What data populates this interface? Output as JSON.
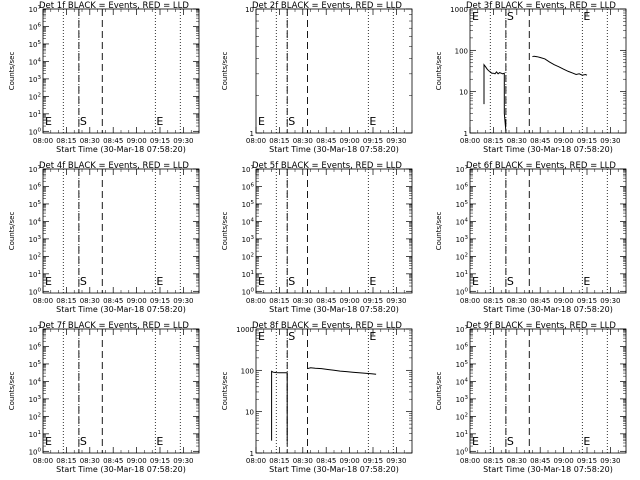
{
  "chart_data": [
    {
      "title": "Det 1f BLACK = Events, RED = LLD",
      "ylabel": "Counts/sec",
      "xlabel": "Start Time (30-Mar-18 07:58:20)",
      "type": "line",
      "yscale": "log",
      "ylim": [
        0.8,
        10000000
      ],
      "yticks": [
        "10^0",
        "10^1",
        "10^2",
        "10^3",
        "10^4",
        "10^5",
        "10^6",
        "10^7"
      ],
      "xticks": [
        "08:00",
        "08:15",
        "08:30",
        "08:45",
        "09:00",
        "09:15",
        "09:30"
      ],
      "dotted_lines": [
        "08:13",
        "08:23",
        "09:12",
        "09:28"
      ],
      "dashed_lines": [
        "08:23",
        "08:38"
      ],
      "markers": {
        "S": "08:23",
        "E": "09:12"
      },
      "series": []
    },
    {
      "title": "Det 2f BLACK = Events, RED = LLD",
      "ylabel": "Counts/sec",
      "xlabel": "Start Time (30-Mar-18 07:58:20)",
      "type": "line",
      "yscale": "log",
      "ylim": [
        1,
        10
      ],
      "yticks": [
        "1",
        "10"
      ],
      "xticks": [
        "08:00",
        "08:15",
        "08:30",
        "08:45",
        "09:00",
        "09:15",
        "09:30"
      ],
      "dotted_lines": [
        "08:13",
        "08:20",
        "09:12",
        "09:28"
      ],
      "dashed_lines": [
        "08:20",
        "08:33"
      ],
      "markers": {
        "S": "08:20",
        "E": "09:12"
      },
      "series": []
    },
    {
      "title": "Det 3f BLACK = Events, RED = LLD",
      "ylabel": "Counts/sec",
      "xlabel": "Start Time (30-Mar-18 07:58:20)",
      "type": "line",
      "yscale": "log",
      "ylim": [
        1,
        1000
      ],
      "yticks": [
        "1",
        "10",
        "100",
        "1000"
      ],
      "xticks": [
        "08:00",
        "08:15",
        "08:30",
        "08:45",
        "09:00",
        "09:15",
        "09:30"
      ],
      "dotted_lines": [
        "08:13",
        "08:23",
        "09:12",
        "09:28"
      ],
      "dashed_lines": [
        "08:23",
        "08:38"
      ],
      "markers": {
        "S": "08:23",
        "E": "09:12"
      },
      "series": [
        {
          "x": [
            "08:09",
            "08:09",
            "08:10",
            "08:11",
            "08:12",
            "08:13",
            "08:14",
            "08:15",
            "08:16",
            "08:17",
            "08:18",
            "08:19",
            "08:20",
            "08:21",
            "08:22",
            "08:22",
            "08:23"
          ],
          "values": [
            5,
            45,
            40,
            35,
            32,
            30,
            28,
            28,
            27,
            30,
            27,
            29,
            28,
            27,
            28,
            3,
            1.1
          ]
        },
        {
          "x": [
            "08:40",
            "08:41",
            "08:43",
            "08:45",
            "08:48",
            "08:51",
            "08:54",
            "08:57",
            "09:00",
            "09:03",
            "09:06",
            "09:08",
            "09:10",
            "09:12",
            "09:14",
            "09:15"
          ],
          "values": [
            70,
            72,
            70,
            67,
            62,
            52,
            45,
            40,
            35,
            31,
            28,
            26,
            27,
            25,
            26,
            25
          ]
        }
      ]
    },
    {
      "title": "Det 4f BLACK = Events, RED = LLD",
      "ylabel": "Counts/sec",
      "xlabel": "Start Time (30-Mar-18 07:58:20)",
      "type": "line",
      "yscale": "log",
      "ylim": [
        0.8,
        10000000
      ],
      "yticks": [
        "10^0",
        "10^1",
        "10^2",
        "10^3",
        "10^4",
        "10^5",
        "10^6",
        "10^7"
      ],
      "xticks": [
        "08:00",
        "08:15",
        "08:30",
        "08:45",
        "09:00",
        "09:15",
        "09:30"
      ],
      "dotted_lines": [
        "08:13",
        "08:23",
        "09:12",
        "09:28"
      ],
      "dashed_lines": [
        "08:23",
        "08:38"
      ],
      "markers": {
        "S": "08:23",
        "E": "09:12"
      },
      "series": []
    },
    {
      "title": "Det 5f BLACK = Events, RED = LLD",
      "ylabel": "Counts/sec",
      "xlabel": "Start Time (30-Mar-18 07:58:20)",
      "type": "line",
      "yscale": "log",
      "ylim": [
        0.8,
        10000000
      ],
      "yticks": [
        "10^0",
        "10^1",
        "10^2",
        "10^3",
        "10^4",
        "10^5",
        "10^6",
        "10^7"
      ],
      "xticks": [
        "08:00",
        "08:15",
        "08:30",
        "08:45",
        "09:00",
        "09:15",
        "09:30"
      ],
      "dotted_lines": [
        "08:13",
        "08:20",
        "09:12",
        "09:28"
      ],
      "dashed_lines": [
        "08:20",
        "08:33"
      ],
      "markers": {
        "S": "08:20",
        "E": "09:12"
      },
      "series": []
    },
    {
      "title": "Det 6f BLACK = Events, RED = LLD",
      "ylabel": "Counts/sec",
      "xlabel": "Start Time (30-Mar-18 07:58:20)",
      "type": "line",
      "yscale": "log",
      "ylim": [
        0.8,
        10000000
      ],
      "yticks": [
        "10^0",
        "10^1",
        "10^2",
        "10^3",
        "10^4",
        "10^5",
        "10^6",
        "10^7"
      ],
      "xticks": [
        "08:00",
        "08:15",
        "08:30",
        "08:45",
        "09:00",
        "09:15",
        "09:30"
      ],
      "dotted_lines": [
        "08:13",
        "08:23",
        "09:12",
        "09:28"
      ],
      "dashed_lines": [
        "08:23",
        "08:38"
      ],
      "markers": {
        "S": "08:23",
        "E": "09:12"
      },
      "series": []
    },
    {
      "title": "Det 7f BLACK = Events, RED = LLD",
      "ylabel": "Counts/sec",
      "xlabel": "Start Time (30-Mar-18 07:58:20)",
      "type": "line",
      "yscale": "log",
      "ylim": [
        0.8,
        10000000
      ],
      "yticks": [
        "10^0",
        "10^1",
        "10^2",
        "10^3",
        "10^4",
        "10^5",
        "10^6",
        "10^7"
      ],
      "xticks": [
        "08:00",
        "08:15",
        "08:30",
        "08:45",
        "09:00",
        "09:15",
        "09:30"
      ],
      "dotted_lines": [
        "08:13",
        "08:23",
        "09:12",
        "09:28"
      ],
      "dashed_lines": [
        "08:23",
        "08:38"
      ],
      "markers": {
        "S": "08:23",
        "E": "09:12"
      },
      "series": []
    },
    {
      "title": "Det 8f BLACK = Events, RED = LLD",
      "ylabel": "Counts/sec",
      "xlabel": "Start Time (30-Mar-18 07:58:20)",
      "type": "line",
      "yscale": "log",
      "ylim": [
        1,
        1000
      ],
      "yticks": [
        "1",
        "10",
        "100",
        "1000"
      ],
      "xticks": [
        "08:00",
        "08:15",
        "08:30",
        "08:45",
        "09:00",
        "09:15",
        "09:30"
      ],
      "dotted_lines": [
        "08:13",
        "08:20",
        "09:12",
        "09:28"
      ],
      "dashed_lines": [
        "08:20",
        "08:33"
      ],
      "markers": {
        "S": "08:20",
        "E": "09:12"
      },
      "series": [
        {
          "x": [
            "08:10",
            "08:10",
            "08:11",
            "08:13",
            "08:15",
            "08:17",
            "08:19",
            "08:20",
            "08:20"
          ],
          "values": [
            2,
            95,
            90,
            88,
            87,
            87,
            87,
            87,
            2
          ]
        },
        {
          "x": [
            "08:33",
            "08:35",
            "08:38",
            "08:42",
            "08:46",
            "08:50",
            "08:54",
            "08:58",
            "09:02",
            "09:06",
            "09:10",
            "09:14",
            "09:17"
          ],
          "values": [
            110,
            115,
            112,
            110,
            105,
            100,
            96,
            93,
            90,
            87,
            85,
            83,
            80
          ]
        }
      ]
    },
    {
      "title": "Det 9f BLACK = Events, RED = LLD",
      "ylabel": "Counts/sec",
      "xlabel": "Start Time (30-Mar-18 07:58:20)",
      "type": "line",
      "yscale": "log",
      "ylim": [
        0.8,
        10000000
      ],
      "yticks": [
        "10^0",
        "10^1",
        "10^2",
        "10^3",
        "10^4",
        "10^5",
        "10^6",
        "10^7"
      ],
      "xticks": [
        "08:00",
        "08:15",
        "08:30",
        "08:45",
        "09:00",
        "09:15",
        "09:30"
      ],
      "dotted_lines": [
        "08:13",
        "08:23",
        "09:12",
        "09:28"
      ],
      "dashed_lines": [
        "08:23",
        "08:38"
      ],
      "markers": {
        "S": "08:23",
        "E": "09:12"
      },
      "series": []
    }
  ]
}
